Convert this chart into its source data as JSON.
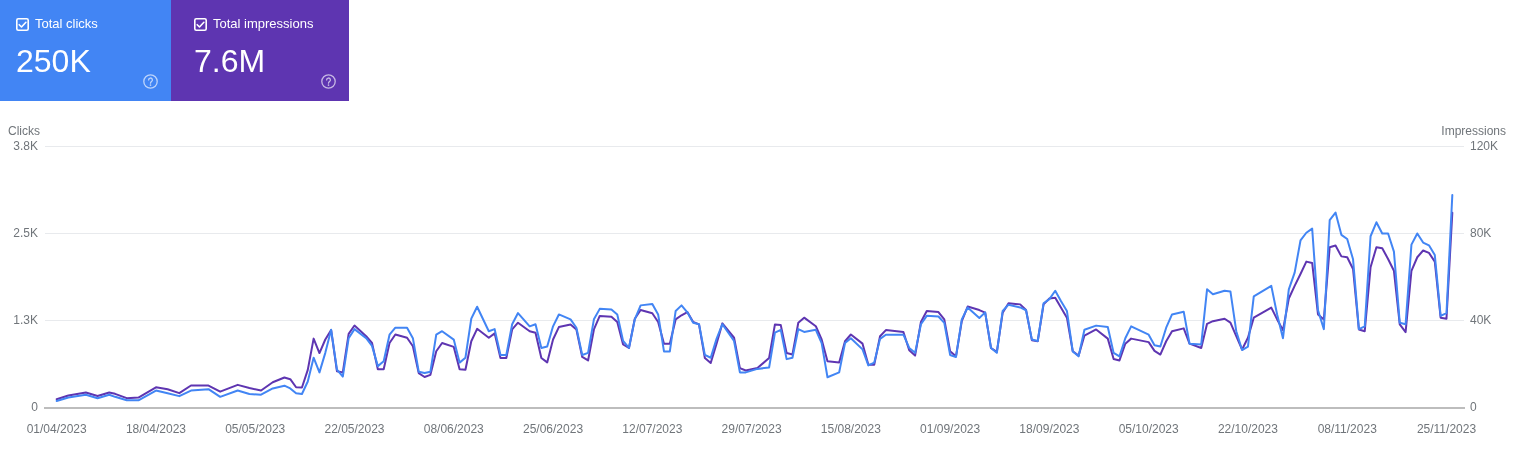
{
  "chart_data": {
    "type": "line",
    "legend": "top left",
    "annotations": [
      "250K",
      "7.6M"
    ],
    "ylabel": "Clicks",
    "y2label": "Impressions",
    "marker": "none",
    "line_style": "solid",
    "grid": "y",
    "xlim": [
      "2023-03-30",
      "2023-11-28"
    ],
    "xticks": [
      {
        "value": "2023-04-01",
        "label": "01/04/2023"
      },
      {
        "value": "2023-04-18",
        "label": "18/04/2023"
      },
      {
        "value": "2023-05-05",
        "label": "05/05/2023"
      },
      {
        "value": "2023-05-22",
        "label": "22/05/2023"
      },
      {
        "value": "2023-06-08",
        "label": "08/06/2023"
      },
      {
        "value": "2023-06-25",
        "label": "25/06/2023"
      },
      {
        "value": "2023-07-12",
        "label": "12/07/2023"
      },
      {
        "value": "2023-07-29",
        "label": "29/07/2023"
      },
      {
        "value": "2023-08-15",
        "label": "15/08/2023"
      },
      {
        "value": "2023-09-01",
        "label": "01/09/2023"
      },
      {
        "value": "2023-09-18",
        "label": "18/09/2023"
      },
      {
        "value": "2023-10-05",
        "label": "05/10/2023"
      },
      {
        "value": "2023-10-22",
        "label": "22/10/2023"
      },
      {
        "value": "2023-11-08",
        "label": "08/11/2023"
      },
      {
        "value": "2023-11-25",
        "label": "25/11/2023"
      }
    ],
    "ylim": [
      0,
      3750
    ],
    "yticks": [
      0,
      {
        "value": 1250,
        "label": "1.3K"
      },
      {
        "value": 2500,
        "label": "2.5K"
      },
      {
        "value": 3750,
        "label": "3.8K"
      }
    ],
    "y2lim": [
      0,
      120000
    ],
    "y2ticks": [
      0,
      {
        "value": 40000,
        "label": "40K"
      },
      {
        "value": 80000,
        "label": "80K"
      },
      {
        "value": 120000,
        "label": "120K"
      }
    ],
    "x": [
      "2023-04-01",
      "2023-04-03",
      "2023-04-06",
      "2023-04-08",
      "2023-04-10",
      "2023-04-11",
      "2023-04-13",
      "2023-04-15",
      "2023-04-18",
      "2023-04-20",
      "2023-04-22",
      "2023-04-24",
      "2023-04-27",
      "2023-04-29",
      "2023-05-02",
      "2023-05-04",
      "2023-05-06",
      "2023-05-08",
      "2023-05-10",
      "2023-05-11",
      "2023-05-12",
      "2023-05-13",
      "2023-05-14",
      "2023-05-15",
      "2023-05-16",
      "2023-05-17",
      "2023-05-18",
      "2023-05-19",
      "2023-05-20",
      "2023-05-21",
      "2023-05-22",
      "2023-05-24",
      "2023-05-25",
      "2023-05-26",
      "2023-05-27",
      "2023-05-28",
      "2023-05-29",
      "2023-05-31",
      "2023-06-01",
      "2023-06-02",
      "2023-06-03",
      "2023-06-04",
      "2023-06-05",
      "2023-06-06",
      "2023-06-08",
      "2023-06-09",
      "2023-06-10",
      "2023-06-11",
      "2023-06-12",
      "2023-06-14",
      "2023-06-15",
      "2023-06-16",
      "2023-06-17",
      "2023-06-18",
      "2023-06-19",
      "2023-06-21",
      "2023-06-22",
      "2023-06-23",
      "2023-06-24",
      "2023-06-25",
      "2023-06-26",
      "2023-06-28",
      "2023-06-29",
      "2023-06-30",
      "2023-07-01",
      "2023-07-02",
      "2023-07-03",
      "2023-07-05",
      "2023-07-06",
      "2023-07-07",
      "2023-07-08",
      "2023-07-09",
      "2023-07-10",
      "2023-07-12",
      "2023-07-13",
      "2023-07-14",
      "2023-07-15",
      "2023-07-16",
      "2023-07-17",
      "2023-07-18",
      "2023-07-19",
      "2023-07-20",
      "2023-07-21",
      "2023-07-22",
      "2023-07-23",
      "2023-07-24",
      "2023-07-26",
      "2023-07-27",
      "2023-07-28",
      "2023-07-30",
      "2023-08-01",
      "2023-08-02",
      "2023-08-03",
      "2023-08-04",
      "2023-08-05",
      "2023-08-06",
      "2023-08-07",
      "2023-08-09",
      "2023-08-10",
      "2023-08-11",
      "2023-08-13",
      "2023-08-14",
      "2023-08-15",
      "2023-08-17",
      "2023-08-18",
      "2023-08-19",
      "2023-08-20",
      "2023-08-21",
      "2023-08-24",
      "2023-08-25",
      "2023-08-26",
      "2023-08-27",
      "2023-08-28",
      "2023-08-30",
      "2023-08-31",
      "2023-09-01",
      "2023-09-02",
      "2023-09-03",
      "2023-09-04",
      "2023-09-06",
      "2023-09-07",
      "2023-09-08",
      "2023-09-09",
      "2023-09-10",
      "2023-09-11",
      "2023-09-13",
      "2023-09-14",
      "2023-09-15",
      "2023-09-16",
      "2023-09-17",
      "2023-09-18",
      "2023-09-19",
      "2023-09-20",
      "2023-09-21",
      "2023-09-22",
      "2023-09-23",
      "2023-09-24",
      "2023-09-26",
      "2023-09-28",
      "2023-09-29",
      "2023-09-30",
      "2023-10-01",
      "2023-10-02",
      "2023-10-05",
      "2023-10-06",
      "2023-10-07",
      "2023-10-08",
      "2023-10-09",
      "2023-10-11",
      "2023-10-12",
      "2023-10-14",
      "2023-10-15",
      "2023-10-16",
      "2023-10-18",
      "2023-10-19",
      "2023-10-20",
      "2023-10-21",
      "2023-10-22",
      "2023-10-23",
      "2023-10-26",
      "2023-10-27",
      "2023-10-28",
      "2023-10-29",
      "2023-10-30",
      "2023-10-31",
      "2023-11-01",
      "2023-11-02",
      "2023-11-03",
      "2023-11-04",
      "2023-11-05",
      "2023-11-06",
      "2023-11-07",
      "2023-11-08",
      "2023-11-09",
      "2023-11-10",
      "2023-11-11",
      "2023-11-12",
      "2023-11-13",
      "2023-11-14",
      "2023-11-15",
      "2023-11-16",
      "2023-11-17",
      "2023-11-18",
      "2023-11-19",
      "2023-11-20",
      "2023-11-21",
      "2023-11-22",
      "2023-11-23",
      "2023-11-24",
      "2023-11-25",
      "2023-11-26"
    ],
    "series": [
      {
        "name": "Total clicks",
        "color": "#4285f4",
        "values": [
          100,
          150,
          190,
          140,
          190,
          160,
          110,
          110,
          250,
          210,
          170,
          250,
          270,
          160,
          250,
          200,
          190,
          280,
          320,
          280,
          210,
          200,
          380,
          720,
          510,
          790,
          1120,
          550,
          450,
          1000,
          1130,
          1000,
          890,
          600,
          670,
          1050,
          1150,
          1150,
          1000,
          520,
          500,
          520,
          1050,
          1100,
          980,
          650,
          720,
          1280,
          1450,
          1100,
          1130,
          760,
          760,
          1200,
          1360,
          1170,
          1200,
          860,
          880,
          1170,
          1340,
          1270,
          1150,
          760,
          790,
          1270,
          1420,
          1410,
          1340,
          960,
          860,
          1270,
          1470,
          1490,
          1340,
          810,
          810,
          1390,
          1470,
          1370,
          1220,
          1200,
          760,
          720,
          990,
          1200,
          960,
          510,
          510,
          560,
          580,
          1080,
          1120,
          700,
          720,
          1130,
          1090,
          1120,
          930,
          440,
          510,
          930,
          1000,
          840,
          610,
          650,
          990,
          1050,
          1050,
          860,
          790,
          1200,
          1320,
          1310,
          1220,
          760,
          730,
          1270,
          1440,
          1290,
          1370,
          860,
          790,
          1390,
          1480,
          1440,
          1400,
          980,
          960,
          1500,
          1560,
          1680,
          1530,
          1390,
          810,
          740,
          1120,
          1180,
          1160,
          790,
          740,
          1000,
          1170,
          1050,
          900,
          880,
          1150,
          1340,
          1380,
          920,
          910,
          1700,
          1630,
          1680,
          1670,
          1100,
          830,
          880,
          1600,
          1750,
          1340,
          1000,
          1700,
          1940,
          2400,
          2510,
          2570,
          1400,
          1130,
          2690,
          2800,
          2480,
          2420,
          2130,
          1130,
          1170,
          2460,
          2660,
          2500,
          2500,
          2240,
          1220,
          1200,
          2340,
          2500,
          2370,
          2330,
          2190,
          1320,
          1360,
          3050
        ]
      },
      {
        "name": "Total impressions",
        "color": "#5e35b1",
        "axis": "y2",
        "values": [
          4000,
          5700,
          7100,
          5500,
          7100,
          6500,
          4500,
          4800,
          9500,
          8600,
          6800,
          10300,
          10300,
          7500,
          10600,
          9200,
          8000,
          11800,
          14000,
          13200,
          9500,
          9400,
          17500,
          31800,
          25200,
          31400,
          35700,
          16800,
          16300,
          34000,
          37800,
          32900,
          29800,
          17800,
          17800,
          29800,
          33700,
          32200,
          28300,
          16000,
          14200,
          15200,
          26000,
          29800,
          28000,
          17800,
          17500,
          30600,
          36300,
          32200,
          34200,
          22900,
          22900,
          36000,
          39100,
          35200,
          34500,
          22900,
          20900,
          31400,
          37100,
          38300,
          36000,
          23400,
          21800,
          36000,
          42200,
          41800,
          39400,
          29100,
          27500,
          40900,
          44900,
          43400,
          39400,
          29500,
          29500,
          40600,
          42500,
          44000,
          39400,
          38300,
          22900,
          20600,
          29500,
          38800,
          32200,
          18300,
          17200,
          18300,
          22900,
          38300,
          38000,
          25200,
          24500,
          39100,
          41400,
          37500,
          31400,
          21400,
          20900,
          30600,
          33700,
          29500,
          19800,
          19800,
          32900,
          35700,
          34800,
          26500,
          24000,
          39400,
          44500,
          44000,
          40600,
          26000,
          23700,
          39800,
          46500,
          44900,
          43700,
          27500,
          25700,
          43700,
          48000,
          47500,
          44900,
          31100,
          30600,
          47500,
          50200,
          50500,
          46000,
          41400,
          26000,
          24000,
          33200,
          36000,
          31800,
          22500,
          21800,
          29500,
          31800,
          30200,
          26200,
          24500,
          30600,
          35200,
          36500,
          29500,
          27500,
          38600,
          39800,
          40900,
          39100,
          32900,
          26800,
          32200,
          41400,
          46000,
          40600,
          35700,
          50200,
          56000,
          61400,
          67100,
          66500,
          42900,
          40600,
          73700,
          74500,
          69500,
          69100,
          63700,
          36000,
          35200,
          64500,
          73700,
          73200,
          68300,
          62900,
          38300,
          34800,
          62900,
          69100,
          72200,
          71100,
          67100,
          41400,
          40900,
          89500
        ]
      }
    ]
  }
}
